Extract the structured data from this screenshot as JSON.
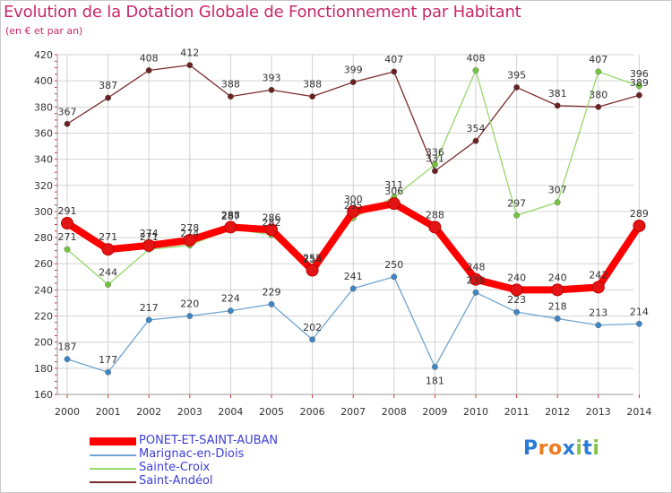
{
  "header": {
    "title": "Evolution de la Dotation Globale de Fonctionnement par Habitant",
    "subtitle": "(en € et par an)"
  },
  "branding": {
    "logo_text": "Proxiti",
    "logo_letters": [
      "P",
      "r",
      "o",
      "x",
      "i",
      "t",
      "i"
    ],
    "logo_colors": [
      "#2b7bd6",
      "#f07b1f",
      "#f07b1f",
      "#2b7bd6",
      "#8bc34a",
      "#2b7bd6",
      "#8bc34a"
    ]
  },
  "chart_data": {
    "type": "line",
    "title": "Evolution de la Dotation Globale de Fonctionnement par Habitant",
    "subtitle": "(en € et par an)",
    "xlabel": "",
    "ylabel": "",
    "ylim": [
      160,
      420
    ],
    "y_ticks": [
      160,
      180,
      200,
      220,
      240,
      260,
      280,
      300,
      320,
      340,
      360,
      380,
      400,
      420
    ],
    "grid": true,
    "legend_position": "bottom-left",
    "categories": [
      "2000",
      "2001",
      "2002",
      "2003",
      "2004",
      "2005",
      "2006",
      "2007",
      "2008",
      "2009",
      "2010",
      "2011",
      "2012",
      "2013",
      "2014"
    ],
    "series": [
      {
        "name": "PONET-ET-SAINT-AUBAN",
        "color": "#ff0000",
        "marker_color": "#e31414",
        "emphasis": true,
        "values": [
          291,
          271,
          274,
          278,
          288,
          286,
          255,
          300,
          306,
          288,
          248,
          240,
          240,
          242,
          289
        ],
        "labels": [
          "291",
          "271",
          "274",
          "278",
          "288",
          "286",
          "255",
          "300",
          "306",
          "288",
          "248",
          "240",
          "240",
          "242",
          "289"
        ]
      },
      {
        "name": "Marignac-en-Diois",
        "color": "#6ea4cf",
        "marker_color": "#3f86c4",
        "emphasis": false,
        "values": [
          187,
          177,
          217,
          220,
          224,
          229,
          202,
          241,
          250,
          181,
          238,
          223,
          218,
          213,
          214
        ],
        "labels": [
          "187",
          "177",
          "217",
          "220",
          "224",
          "229",
          "202",
          "241",
          "250",
          "181",
          "238",
          "223",
          "218",
          "213",
          "214"
        ]
      },
      {
        "name": "Sainte-Croix",
        "color": "#96d86a",
        "marker_color": "#74c43c",
        "emphasis": false,
        "values": [
          271,
          244,
          271,
          274,
          287,
          282,
          254,
          295,
          311,
          336,
          408,
          297,
          307,
          407,
          396
        ],
        "labels": [
          "271",
          "244",
          "271",
          "274",
          "287",
          "282",
          "254",
          "295",
          "311",
          "336",
          "408",
          "297",
          "307",
          "407",
          "396"
        ]
      },
      {
        "name": "Saint-Andéol",
        "color": "#7a2c2c",
        "marker_color": "#6a2222",
        "emphasis": false,
        "values": [
          367,
          387,
          408,
          412,
          388,
          393,
          388,
          399,
          407,
          331,
          354,
          395,
          381,
          380,
          389
        ],
        "labels": [
          "367",
          "387",
          "408",
          "412",
          "388",
          "393",
          "388",
          "399",
          "407",
          "331",
          "354",
          "395",
          "381",
          "380",
          "389"
        ]
      }
    ]
  }
}
